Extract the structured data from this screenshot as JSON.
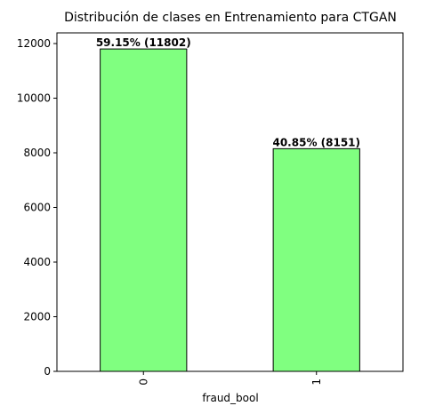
{
  "chart_data": {
    "type": "bar",
    "title": "Distribución de clases en Entrenamiento para CTGAN",
    "xlabel": "fraud_bool",
    "ylabel": "",
    "categories": [
      "0",
      "1"
    ],
    "values": [
      11802,
      8151
    ],
    "data_labels": [
      "59.15% (11802)",
      "40.85% (8151)"
    ],
    "ylim": [
      0,
      12391
    ],
    "yticks": [
      0,
      2000,
      4000,
      6000,
      8000,
      10000,
      12000
    ],
    "ytick_labels": [
      "0",
      "2000",
      "4000",
      "6000",
      "8000",
      "10000",
      "12000"
    ],
    "grid": false,
    "legend": "none",
    "colors": {
      "bar_fill": "#80ff80",
      "bar_edge": "#000000",
      "axis": "#000000"
    }
  }
}
